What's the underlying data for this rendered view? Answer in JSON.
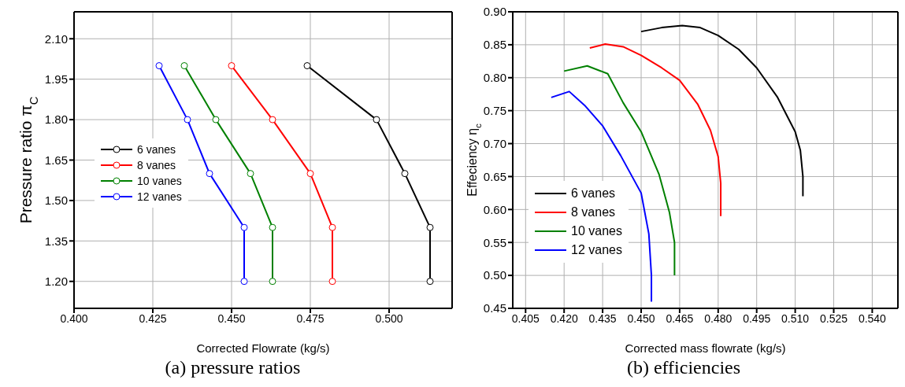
{
  "chart_data": [
    {
      "type": "line",
      "xlabel": "Corrected Flowrate (kg/s)",
      "ylabel": "Pressure ratio π$_{C}$",
      "annotations": [
        "(a) pressure ratios"
      ],
      "xlim": [
        0.4,
        0.52
      ],
      "xticks": [
        {
          "value": 0.4,
          "label": "0.400"
        },
        {
          "value": 0.425,
          "label": "0.425"
        },
        {
          "value": 0.45,
          "label": "0.450"
        },
        {
          "value": 0.475,
          "label": "0.475"
        },
        {
          "value": 0.5,
          "label": "0.500"
        }
      ],
      "ylim": [
        1.1,
        2.2
      ],
      "yticks": [
        {
          "value": 1.2,
          "label": "1.20"
        },
        {
          "value": 1.35,
          "label": "1.35"
        },
        {
          "value": 1.5,
          "label": "1.50"
        },
        {
          "value": 1.65,
          "label": "1.65"
        },
        {
          "value": 1.8,
          "label": "1.80"
        },
        {
          "value": 1.95,
          "label": "1.95"
        },
        {
          "value": 2.1,
          "label": "2.10"
        }
      ],
      "grid": true,
      "legend": "left",
      "marker": "circle",
      "line_style": "solid",
      "series": [
        {
          "name": "6 vanes",
          "color": "#000000",
          "x": [
            0.474,
            0.496,
            0.505,
            0.513,
            0.513
          ],
          "values": [
            2.0,
            1.8,
            1.6,
            1.4,
            1.2
          ]
        },
        {
          "name": "8 vanes",
          "color": "#ff0000",
          "x": [
            0.45,
            0.463,
            0.475,
            0.482,
            0.482
          ],
          "values": [
            2.0,
            1.8,
            1.6,
            1.4,
            1.2
          ]
        },
        {
          "name": "10 vanes",
          "color": "#008000",
          "x": [
            0.435,
            0.445,
            0.456,
            0.463,
            0.463
          ],
          "values": [
            2.0,
            1.8,
            1.6,
            1.4,
            1.2
          ]
        },
        {
          "name": "12 vanes",
          "color": "#0000ff",
          "x": [
            0.427,
            0.436,
            0.443,
            0.454,
            0.454
          ],
          "values": [
            2.0,
            1.8,
            1.6,
            1.4,
            1.2
          ]
        }
      ]
    },
    {
      "type": "line",
      "xlabel": "Corrected mass flowrate (kg/s)",
      "ylabel": "Effeciency η$_{c}$",
      "annotations": [
        "(b) efficiencies"
      ],
      "xlim": [
        0.4,
        0.55
      ],
      "xticks": [
        0.405,
        {
          "value": 0.42,
          "label": "0.420"
        },
        0.435,
        {
          "value": 0.45,
          "label": "0.450"
        },
        0.465,
        {
          "value": 0.48,
          "label": "0.480"
        },
        0.495,
        {
          "value": 0.51,
          "label": "0.510"
        },
        0.525,
        {
          "value": 0.54,
          "label": "0.540"
        }
      ],
      "ylim": [
        0.45,
        0.9
      ],
      "yticks": [
        {
          "value": 0.45,
          "label": "0.45"
        },
        {
          "value": 0.5,
          "label": "0.50"
        },
        {
          "value": 0.55,
          "label": "0.55"
        },
        {
          "value": 0.6,
          "label": "0.60"
        },
        {
          "value": 0.65,
          "label": "0.65"
        },
        {
          "value": 0.7,
          "label": "0.70"
        },
        {
          "value": 0.75,
          "label": "0.75"
        },
        {
          "value": 0.8,
          "label": "0.80"
        },
        {
          "value": 0.85,
          "label": "0.85"
        },
        {
          "value": 0.9,
          "label": "0.90"
        }
      ],
      "grid": true,
      "legend": "bottom left",
      "line_style": "solid",
      "series": [
        {
          "name": "6 vanes",
          "color": "#000000",
          "x": [
            0.45,
            0.458,
            0.466,
            0.473,
            0.48,
            0.488,
            0.495,
            0.503,
            0.51,
            0.512,
            0.513,
            0.513
          ],
          "values": [
            0.87,
            0.876,
            0.879,
            0.876,
            0.864,
            0.843,
            0.815,
            0.771,
            0.718,
            0.69,
            0.65,
            0.62
          ]
        },
        {
          "name": "8 vanes",
          "color": "#ff0000",
          "x": [
            0.43,
            0.436,
            0.443,
            0.45,
            0.458,
            0.465,
            0.472,
            0.477,
            0.48,
            0.481,
            0.481
          ],
          "values": [
            0.845,
            0.851,
            0.847,
            0.834,
            0.815,
            0.796,
            0.76,
            0.72,
            0.68,
            0.64,
            0.59
          ]
        },
        {
          "name": "10 vanes",
          "color": "#008000",
          "x": [
            0.42,
            0.429,
            0.437,
            0.443,
            0.45,
            0.457,
            0.461,
            0.463,
            0.463
          ],
          "values": [
            0.81,
            0.818,
            0.806,
            0.762,
            0.718,
            0.653,
            0.596,
            0.55,
            0.5
          ]
        },
        {
          "name": "12 vanes",
          "color": "#0000ff",
          "x": [
            0.415,
            0.422,
            0.428,
            0.435,
            0.442,
            0.45,
            0.453,
            0.454,
            0.454
          ],
          "values": [
            0.77,
            0.779,
            0.758,
            0.727,
            0.682,
            0.625,
            0.563,
            0.5,
            0.46
          ]
        }
      ]
    }
  ]
}
